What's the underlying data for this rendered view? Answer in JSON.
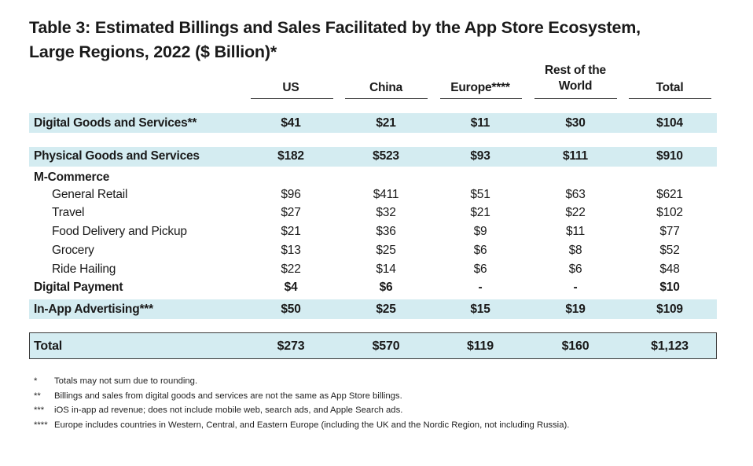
{
  "chart_data": {
    "type": "table",
    "title_lines": [
      "Table 3: Estimated Billings and Sales Facilitated by the App Store Ecosystem,",
      "Large Regions, 2022 ($ Billion)*"
    ],
    "columns": [
      {
        "line1": "",
        "line2": "US"
      },
      {
        "line1": "",
        "line2": "China"
      },
      {
        "line1": "",
        "line2": "Europe****"
      },
      {
        "line1": "Rest of the",
        "line2": "World"
      },
      {
        "line1": "",
        "line2": "Total"
      }
    ],
    "rows": [
      {
        "label": "Digital Goods and Services**",
        "style": "bold",
        "indent": 0,
        "band": true,
        "values": [
          "$41",
          "$21",
          "$11",
          "$30",
          "$104"
        ]
      },
      {
        "label": "Physical Goods and Services",
        "style": "bold",
        "indent": 0,
        "band": true,
        "values": [
          "$182",
          "$523",
          "$93",
          "$111",
          "$910"
        ]
      },
      {
        "label": "M-Commerce",
        "style": "bold",
        "indent": 0,
        "band": false,
        "values": [
          "",
          "",
          "",
          "",
          ""
        ]
      },
      {
        "label": "General Retail",
        "style": "normal",
        "indent": 1,
        "band": false,
        "values": [
          "$96",
          "$411",
          "$51",
          "$63",
          "$621"
        ]
      },
      {
        "label": "Travel",
        "style": "normal",
        "indent": 1,
        "band": false,
        "values": [
          "$27",
          "$32",
          "$21",
          "$22",
          "$102"
        ]
      },
      {
        "label": "Food Delivery and Pickup",
        "style": "normal",
        "indent": 1,
        "band": false,
        "values": [
          "$21",
          "$36",
          "$9",
          "$11",
          "$77"
        ]
      },
      {
        "label": "Grocery",
        "style": "normal",
        "indent": 1,
        "band": false,
        "values": [
          "$13",
          "$25",
          "$6",
          "$8",
          "$52"
        ]
      },
      {
        "label": "Ride Hailing",
        "style": "normal",
        "indent": 1,
        "band": false,
        "values": [
          "$22",
          "$14",
          "$6",
          "$6",
          "$48"
        ]
      },
      {
        "label": "Digital Payment",
        "style": "bold",
        "indent": 0,
        "band": false,
        "values": [
          "$4",
          "$6",
          "-",
          "-",
          "$10"
        ]
      },
      {
        "label": "In-App Advertising***",
        "style": "bold",
        "indent": 0,
        "band": true,
        "values": [
          "$50",
          "$25",
          "$15",
          "$19",
          "$109"
        ]
      },
      {
        "label": "Total",
        "style": "total",
        "indent": 0,
        "band": true,
        "values": [
          "$273",
          "$570",
          "$119",
          "$160",
          "$1,123"
        ]
      }
    ],
    "footnotes": [
      {
        "mark": "*",
        "text": "Totals may not sum due to rounding."
      },
      {
        "mark": "**",
        "text": "Billings and sales from digital goods and services are not the same as App Store billings."
      },
      {
        "mark": "***",
        "text": "iOS in-app ad revenue; does not include mobile web, search ads, and Apple Search ads."
      },
      {
        "mark": "****",
        "text": "Europe includes countries in Western, Central, and Eastern Europe (including the UK and the Nordic Region, not including Russia)."
      }
    ],
    "colors": {
      "band": "#d4ecf1",
      "text": "#1a1a1a",
      "rule": "#333333"
    }
  }
}
